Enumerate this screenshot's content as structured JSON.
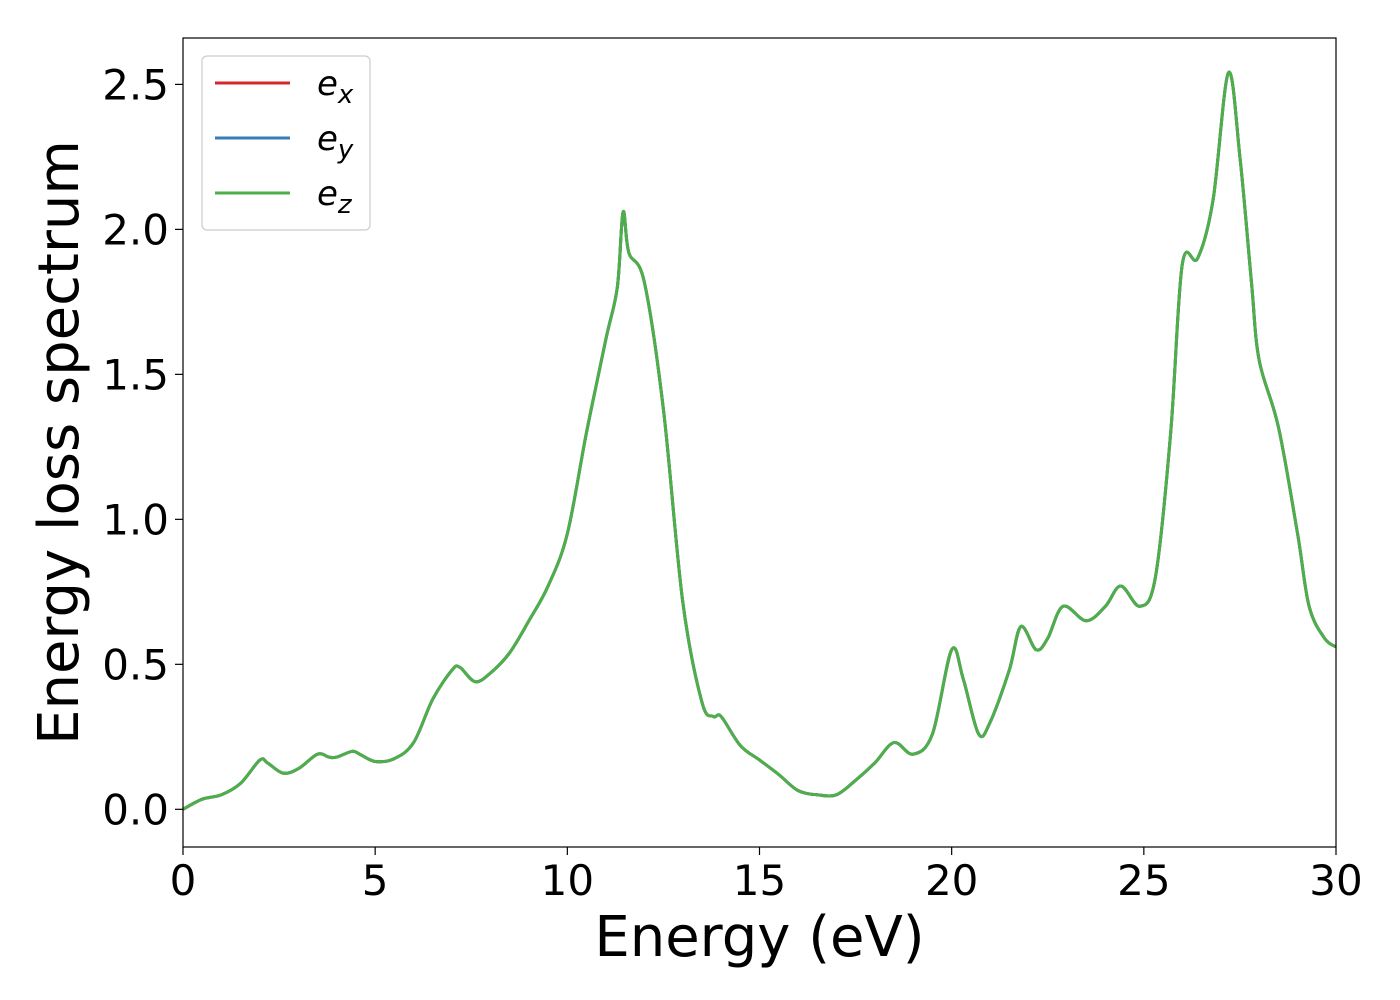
{
  "chart_data": {
    "type": "line",
    "title": "",
    "xlabel": "Energy (eV)",
    "ylabel": "Energy loss spectrum",
    "xlim": [
      0,
      30
    ],
    "ylim": [
      -0.13,
      2.66
    ],
    "xticks": [
      0,
      5,
      10,
      15,
      20,
      25,
      30
    ],
    "xtick_labels": [
      "0",
      "5",
      "10",
      "15",
      "20",
      "25",
      "30"
    ],
    "yticks": [
      0.0,
      0.5,
      1.0,
      1.5,
      2.0,
      2.5
    ],
    "ytick_labels": [
      "0.0",
      "0.5",
      "1.0",
      "1.5",
      "2.0",
      "2.5"
    ],
    "grid": false,
    "legend_position": "top-left",
    "x": [
      0.0,
      0.5,
      1.0,
      1.5,
      2.0,
      2.2,
      2.6,
      3.0,
      3.5,
      3.8,
      4.0,
      4.4,
      4.6,
      5.0,
      5.5,
      6.0,
      6.5,
      7.0,
      7.2,
      7.6,
      8.0,
      8.5,
      9.0,
      9.5,
      10.0,
      10.5,
      11.0,
      11.3,
      11.45,
      11.6,
      12.0,
      12.5,
      13.0,
      13.5,
      13.8,
      14.0,
      14.5,
      15.0,
      15.5,
      16.0,
      16.5,
      17.0,
      17.5,
      18.0,
      18.5,
      19.0,
      19.5,
      20.0,
      20.3,
      20.7,
      21.0,
      21.5,
      21.8,
      22.2,
      22.5,
      22.9,
      23.5,
      24.0,
      24.4,
      24.9,
      25.3,
      25.7,
      26.0,
      26.4,
      26.8,
      27.2,
      27.5,
      27.8,
      28.0,
      28.5,
      29.0,
      29.3,
      29.7,
      30.0
    ],
    "series": [
      {
        "name": "e_x",
        "color": "#d62728",
        "values": [
          0.0,
          0.035,
          0.05,
          0.09,
          0.17,
          0.16,
          0.125,
          0.14,
          0.19,
          0.18,
          0.18,
          0.2,
          0.19,
          0.165,
          0.175,
          0.23,
          0.38,
          0.48,
          0.49,
          0.44,
          0.47,
          0.54,
          0.65,
          0.77,
          0.95,
          1.3,
          1.62,
          1.8,
          2.06,
          1.92,
          1.82,
          1.38,
          0.72,
          0.37,
          0.32,
          0.32,
          0.22,
          0.17,
          0.12,
          0.065,
          0.05,
          0.05,
          0.1,
          0.16,
          0.23,
          0.19,
          0.26,
          0.55,
          0.45,
          0.26,
          0.3,
          0.48,
          0.63,
          0.55,
          0.59,
          0.7,
          0.65,
          0.7,
          0.77,
          0.7,
          0.8,
          1.3,
          1.88,
          1.9,
          2.1,
          2.54,
          2.25,
          1.82,
          1.55,
          1.32,
          0.95,
          0.7,
          0.59,
          0.56
        ]
      },
      {
        "name": "e_y",
        "color": "#377eb8",
        "values": [
          0.0,
          0.035,
          0.05,
          0.09,
          0.17,
          0.16,
          0.125,
          0.14,
          0.19,
          0.18,
          0.18,
          0.2,
          0.19,
          0.165,
          0.175,
          0.23,
          0.38,
          0.48,
          0.49,
          0.44,
          0.47,
          0.54,
          0.65,
          0.77,
          0.95,
          1.3,
          1.62,
          1.8,
          2.06,
          1.92,
          1.82,
          1.38,
          0.72,
          0.37,
          0.32,
          0.32,
          0.22,
          0.17,
          0.12,
          0.065,
          0.05,
          0.05,
          0.1,
          0.16,
          0.23,
          0.19,
          0.26,
          0.55,
          0.45,
          0.26,
          0.3,
          0.48,
          0.63,
          0.55,
          0.59,
          0.7,
          0.65,
          0.7,
          0.77,
          0.7,
          0.8,
          1.3,
          1.88,
          1.9,
          2.1,
          2.54,
          2.25,
          1.82,
          1.55,
          1.32,
          0.95,
          0.7,
          0.59,
          0.56
        ]
      },
      {
        "name": "e_z",
        "color": "#4daf4a",
        "values": [
          0.0,
          0.035,
          0.05,
          0.09,
          0.17,
          0.16,
          0.125,
          0.14,
          0.19,
          0.18,
          0.18,
          0.2,
          0.19,
          0.165,
          0.175,
          0.23,
          0.38,
          0.48,
          0.49,
          0.44,
          0.47,
          0.54,
          0.65,
          0.77,
          0.95,
          1.3,
          1.62,
          1.8,
          2.06,
          1.92,
          1.82,
          1.38,
          0.72,
          0.37,
          0.32,
          0.32,
          0.22,
          0.17,
          0.12,
          0.065,
          0.05,
          0.05,
          0.1,
          0.16,
          0.23,
          0.19,
          0.26,
          0.55,
          0.45,
          0.26,
          0.3,
          0.48,
          0.63,
          0.55,
          0.59,
          0.7,
          0.65,
          0.7,
          0.77,
          0.7,
          0.8,
          1.3,
          1.88,
          1.9,
          2.1,
          2.54,
          2.25,
          1.82,
          1.55,
          1.32,
          0.95,
          0.7,
          0.59,
          0.56
        ]
      }
    ],
    "legend": [
      {
        "base": "e",
        "sub": "x",
        "color": "#d62728"
      },
      {
        "base": "e",
        "sub": "y",
        "color": "#377eb8"
      },
      {
        "base": "e",
        "sub": "z",
        "color": "#4daf4a"
      }
    ]
  }
}
